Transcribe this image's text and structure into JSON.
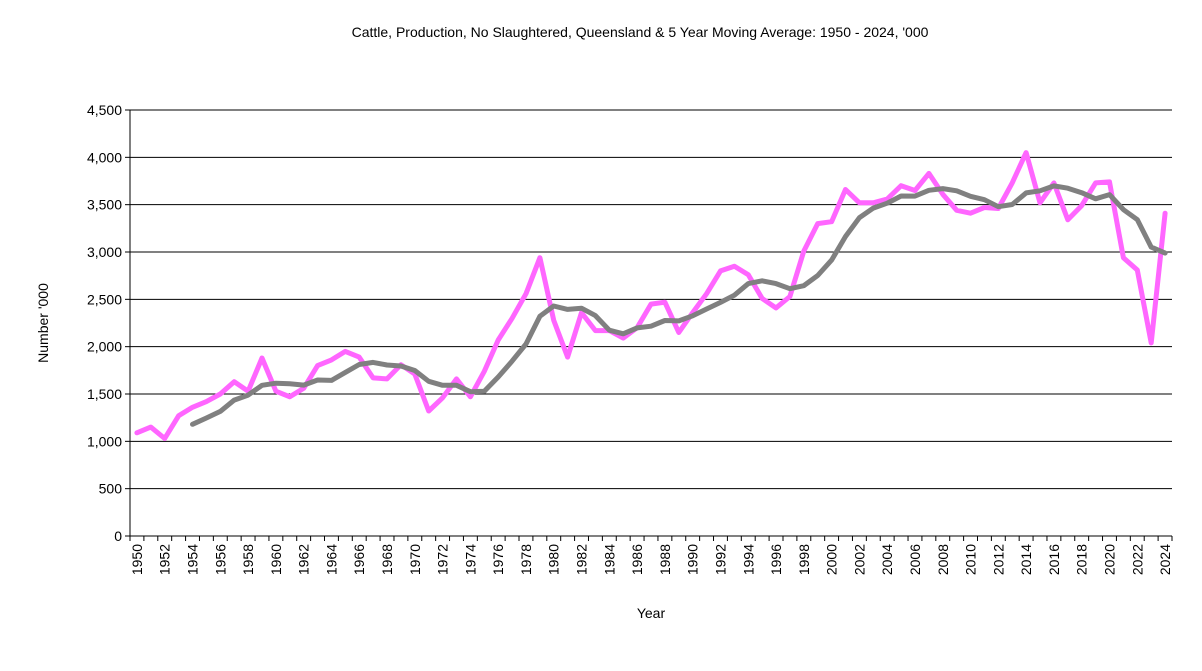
{
  "chart_data": {
    "type": "line",
    "title": "Cattle,  Production, No Slaughtered,  Queensland & 5 Year Moving Average: 1950 - 2024, '000",
    "xlabel": "Year",
    "ylabel": "Number '000",
    "ylim": [
      0,
      4500
    ],
    "yticks": [
      0,
      500,
      1000,
      1500,
      2000,
      2500,
      3000,
      3500,
      4000,
      4500
    ],
    "ytick_labels": [
      "0",
      "500",
      "1,000",
      "1,500",
      "2,000",
      "2,500",
      "3,000",
      "3,500",
      "4,000",
      "4,500"
    ],
    "grid": "horizontal",
    "x_start": 1950,
    "x_end": 2024,
    "xtick_step": 2,
    "series": [
      {
        "color": "#ff66ff",
        "start_year": 1950,
        "values": [
          1090,
          1150,
          1030,
          1270,
          1360,
          1420,
          1500,
          1630,
          1530,
          1880,
          1530,
          1470,
          1560,
          1800,
          1860,
          1950,
          1890,
          1670,
          1660,
          1810,
          1710,
          1320,
          1460,
          1660,
          1470,
          1740,
          2070,
          2300,
          2560,
          2940,
          2280,
          1890,
          2360,
          2170,
          2170,
          2090,
          2200,
          2450,
          2470,
          2150,
          2360,
          2560,
          2800,
          2850,
          2760,
          2510,
          2410,
          2530,
          3010,
          3300,
          3320,
          3660,
          3520,
          3520,
          3560,
          3700,
          3650,
          3830,
          3610,
          3440,
          3410,
          3470,
          3460,
          3730,
          4050,
          3520,
          3730,
          3340,
          3490,
          3730,
          3740,
          2940,
          2810,
          2040,
          3410
        ]
      },
      {
        "color": "#808080",
        "start_year": 1954,
        "values": [
          1180,
          1246,
          1316,
          1436,
          1488,
          1592,
          1614,
          1608,
          1594,
          1648,
          1644,
          1728,
          1812,
          1834,
          1806,
          1796,
          1748,
          1634,
          1592,
          1592,
          1524,
          1530,
          1680,
          1848,
          2028,
          2322,
          2430,
          2394,
          2406,
          2328,
          2174,
          2136,
          2198,
          2216,
          2276,
          2272,
          2326,
          2398,
          2468,
          2544,
          2666,
          2696,
          2666,
          2612,
          2644,
          2752,
          2914,
          3164,
          3362,
          3464,
          3516,
          3592,
          3590,
          3652,
          3670,
          3646,
          3588,
          3552,
          3478,
          3502,
          3624,
          3646,
          3698,
          3674,
          3626,
          3562,
          3606,
          3448,
          3342,
          3052,
          2988
        ]
      }
    ]
  }
}
